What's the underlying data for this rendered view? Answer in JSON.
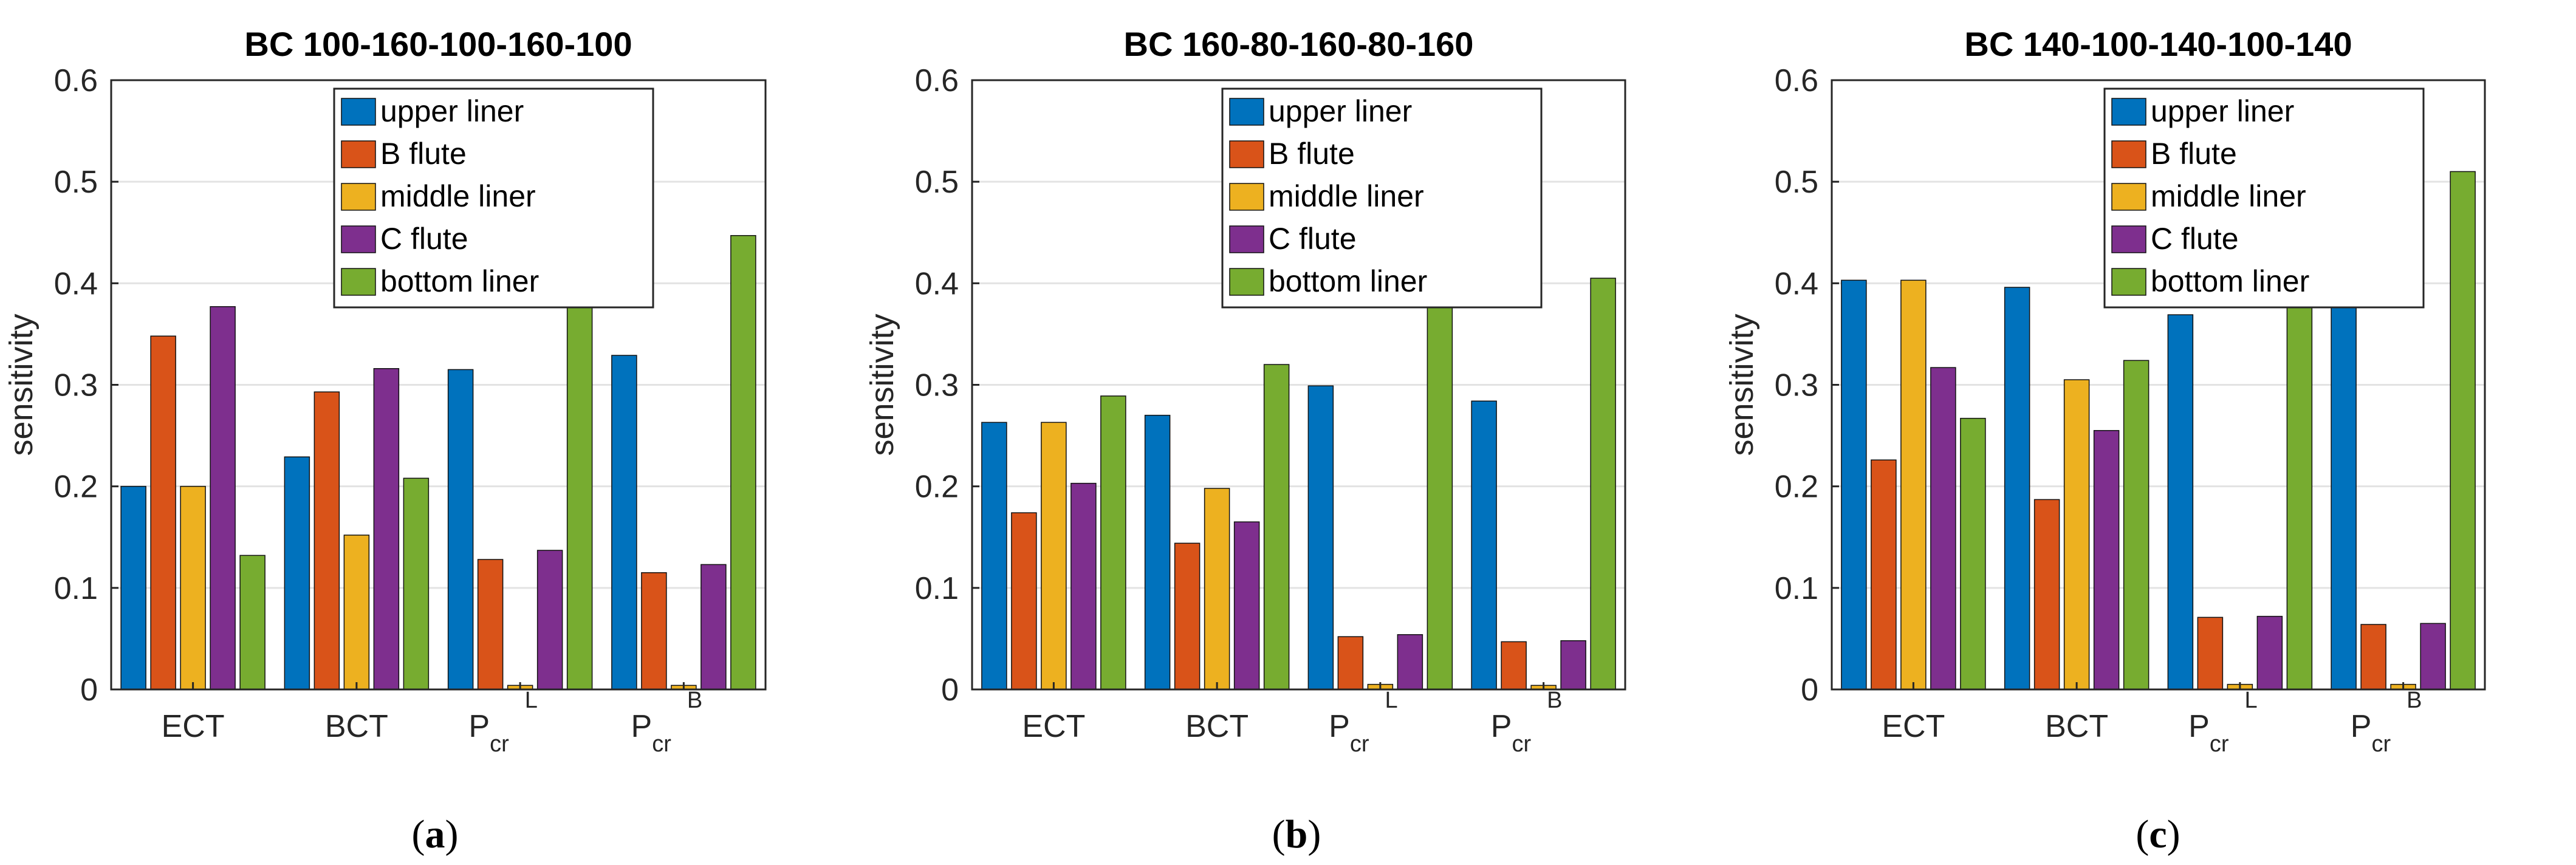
{
  "chart_data": [
    {
      "type": "bar",
      "title": "BC 100-160-100-160-100",
      "panel_label": "(a)",
      "ylabel": "sensitivity",
      "ylim": [
        0,
        0.6
      ],
      "yticks": [
        "0",
        "0.1",
        "0.2",
        "0.3",
        "0.4",
        "0.5",
        "0.6"
      ],
      "grid": true,
      "legend_position": "top-center",
      "categories": [
        {
          "main": "ECT"
        },
        {
          "main": "BCT"
        },
        {
          "main": "P",
          "sub": "cr",
          "sup": "L"
        },
        {
          "main": "P",
          "sub": "cr",
          "sup": "B"
        }
      ],
      "series": [
        {
          "name": "upper liner",
          "color": "#0072BD",
          "values": [
            0.2,
            0.229,
            0.315,
            0.329
          ]
        },
        {
          "name": "B flute",
          "color": "#D95319",
          "values": [
            0.348,
            0.293,
            0.128,
            0.115
          ]
        },
        {
          "name": "middle liner",
          "color": "#EDB120",
          "values": [
            0.2,
            0.152,
            0.004,
            0.004
          ]
        },
        {
          "name": "C flute",
          "color": "#7E2F8E",
          "values": [
            0.377,
            0.316,
            0.137,
            0.123
          ]
        },
        {
          "name": "bottom liner",
          "color": "#77AC30",
          "values": [
            0.132,
            0.208,
            0.43,
            0.447
          ]
        }
      ]
    },
    {
      "type": "bar",
      "title": "BC 160-80-160-80-160",
      "panel_label": "(b)",
      "ylabel": "sensitivity",
      "ylim": [
        0,
        0.6
      ],
      "yticks": [
        "0",
        "0.1",
        "0.2",
        "0.3",
        "0.4",
        "0.5",
        "0.6"
      ],
      "grid": true,
      "legend_position": "top-right",
      "categories": [
        {
          "main": "ECT"
        },
        {
          "main": "BCT"
        },
        {
          "main": "P",
          "sub": "cr",
          "sup": "L"
        },
        {
          "main": "P",
          "sub": "cr",
          "sup": "B"
        }
      ],
      "series": [
        {
          "name": "upper liner",
          "color": "#0072BD",
          "values": [
            0.263,
            0.27,
            0.299,
            0.284
          ]
        },
        {
          "name": "B flute",
          "color": "#D95319",
          "values": [
            0.174,
            0.144,
            0.052,
            0.047
          ]
        },
        {
          "name": "middle liner",
          "color": "#EDB120",
          "values": [
            0.263,
            0.198,
            0.005,
            0.004
          ]
        },
        {
          "name": "C flute",
          "color": "#7E2F8E",
          "values": [
            0.203,
            0.165,
            0.054,
            0.048
          ]
        },
        {
          "name": "bottom liner",
          "color": "#77AC30",
          "values": [
            0.289,
            0.32,
            0.419,
            0.405
          ]
        }
      ]
    },
    {
      "type": "bar",
      "title": "BC 140-100-140-100-140",
      "panel_label": "(c)",
      "ylabel": "sensitivity",
      "ylim": [
        0,
        0.6
      ],
      "yticks": [
        "0",
        "0.1",
        "0.2",
        "0.3",
        "0.4",
        "0.5",
        "0.6"
      ],
      "grid": true,
      "legend_position": "top-right",
      "categories": [
        {
          "main": "ECT"
        },
        {
          "main": "BCT"
        },
        {
          "main": "P",
          "sub": "cr",
          "sup": "L"
        },
        {
          "main": "P",
          "sub": "cr",
          "sup": "B"
        }
      ],
      "series": [
        {
          "name": "upper liner",
          "color": "#0072BD",
          "values": [
            0.403,
            0.396,
            0.369,
            0.376
          ]
        },
        {
          "name": "B flute",
          "color": "#D95319",
          "values": [
            0.226,
            0.187,
            0.071,
            0.064
          ]
        },
        {
          "name": "middle liner",
          "color": "#EDB120",
          "values": [
            0.403,
            0.305,
            0.005,
            0.005
          ]
        },
        {
          "name": "C flute",
          "color": "#7E2F8E",
          "values": [
            0.317,
            0.255,
            0.072,
            0.065
          ]
        },
        {
          "name": "bottom liner",
          "color": "#77AC30",
          "values": [
            0.267,
            0.324,
            0.499,
            0.51
          ]
        }
      ]
    }
  ]
}
